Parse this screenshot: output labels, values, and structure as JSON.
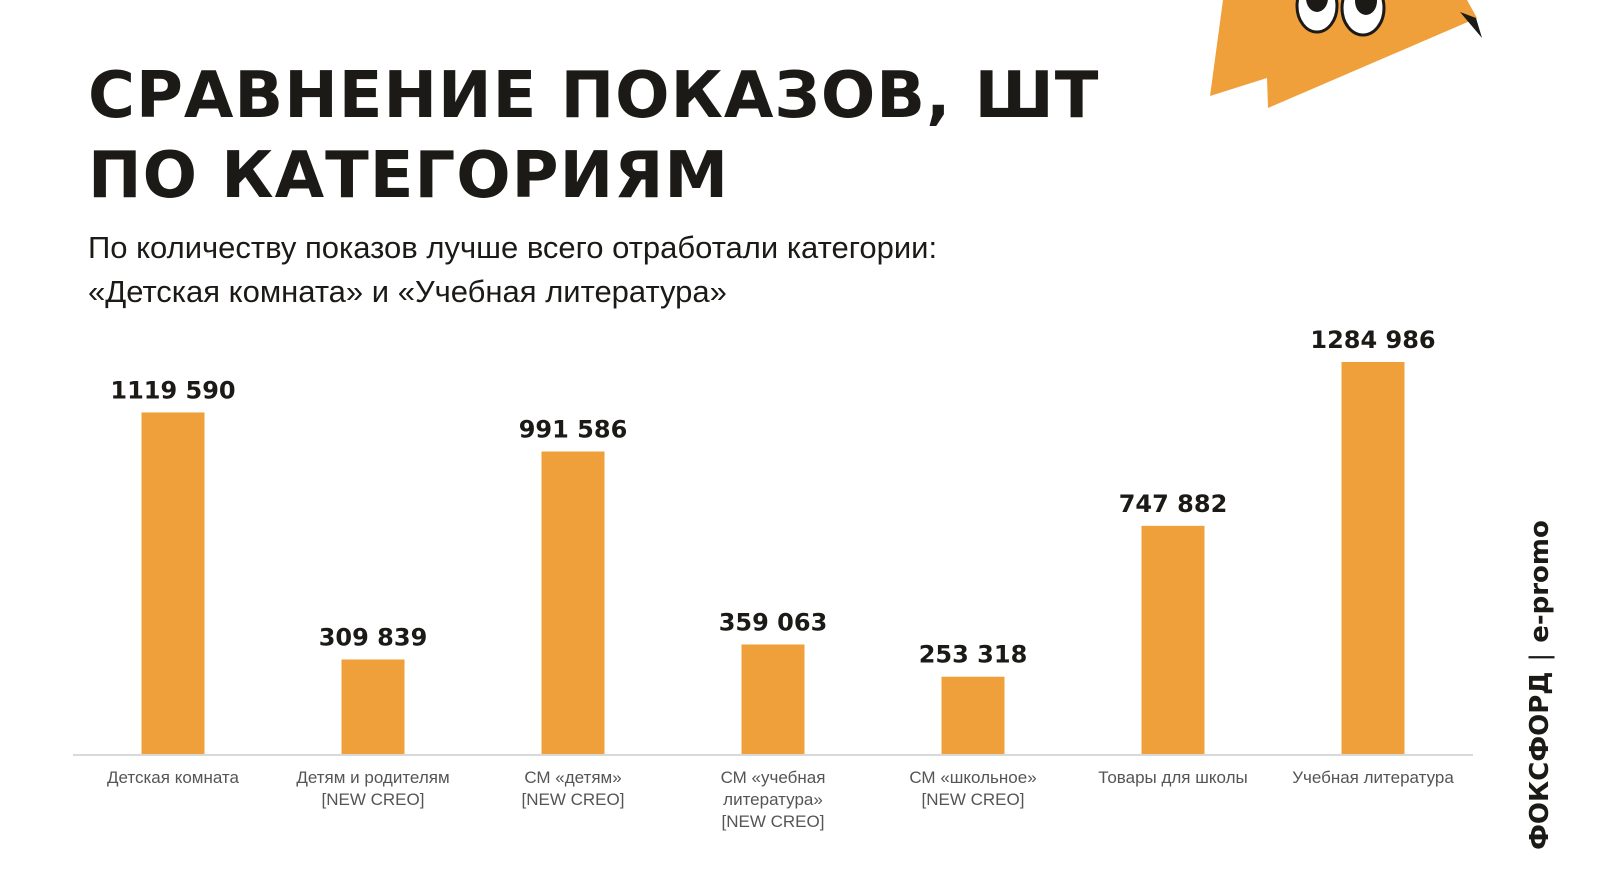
{
  "slide": {
    "title_line1": "СРАВНЕНИЕ ПОКАЗОВ, ШТ",
    "title_line2": "ПО КАТЕГОРИЯМ",
    "subtitle_line1": "По количеству показов лучше всего отработали категории:",
    "subtitle_line2": "«Детская комната» и «Учебная литература»"
  },
  "brand": {
    "left": "ФОКСФОРД",
    "separator": "|",
    "right": "e-promo"
  },
  "colors": {
    "bar": "#F0A03A",
    "text": "#1C1A17",
    "axis_label": "#555555",
    "baseline": "#D9D9D9",
    "mascot_orange": "#F0A03A"
  },
  "icons": {
    "mascot": "fox-mascot-icon",
    "brand_fox": "fox-logo-icon"
  },
  "chart_data": {
    "type": "bar",
    "categories": [
      [
        "Детская комната"
      ],
      [
        "Детям и родителям",
        "[NEW CREO]"
      ],
      [
        "СМ «детям»",
        "[NEW CREO]"
      ],
      [
        "СМ «учебная",
        "литература»",
        "[NEW CREO]"
      ],
      [
        "СМ «школьное»",
        "[NEW CREO]"
      ],
      [
        "Товары для школы"
      ],
      [
        "Учебная литература"
      ]
    ],
    "values": [
      1119590,
      309839,
      991586,
      359063,
      253318,
      747882,
      1284986
    ],
    "data_labels": [
      "1119 590",
      "309 839",
      "991 586",
      "359 063",
      "253 318",
      "747 882",
      "1284 986"
    ],
    "ylim": [
      0,
      1284986
    ],
    "grid": false,
    "legend": "none"
  }
}
